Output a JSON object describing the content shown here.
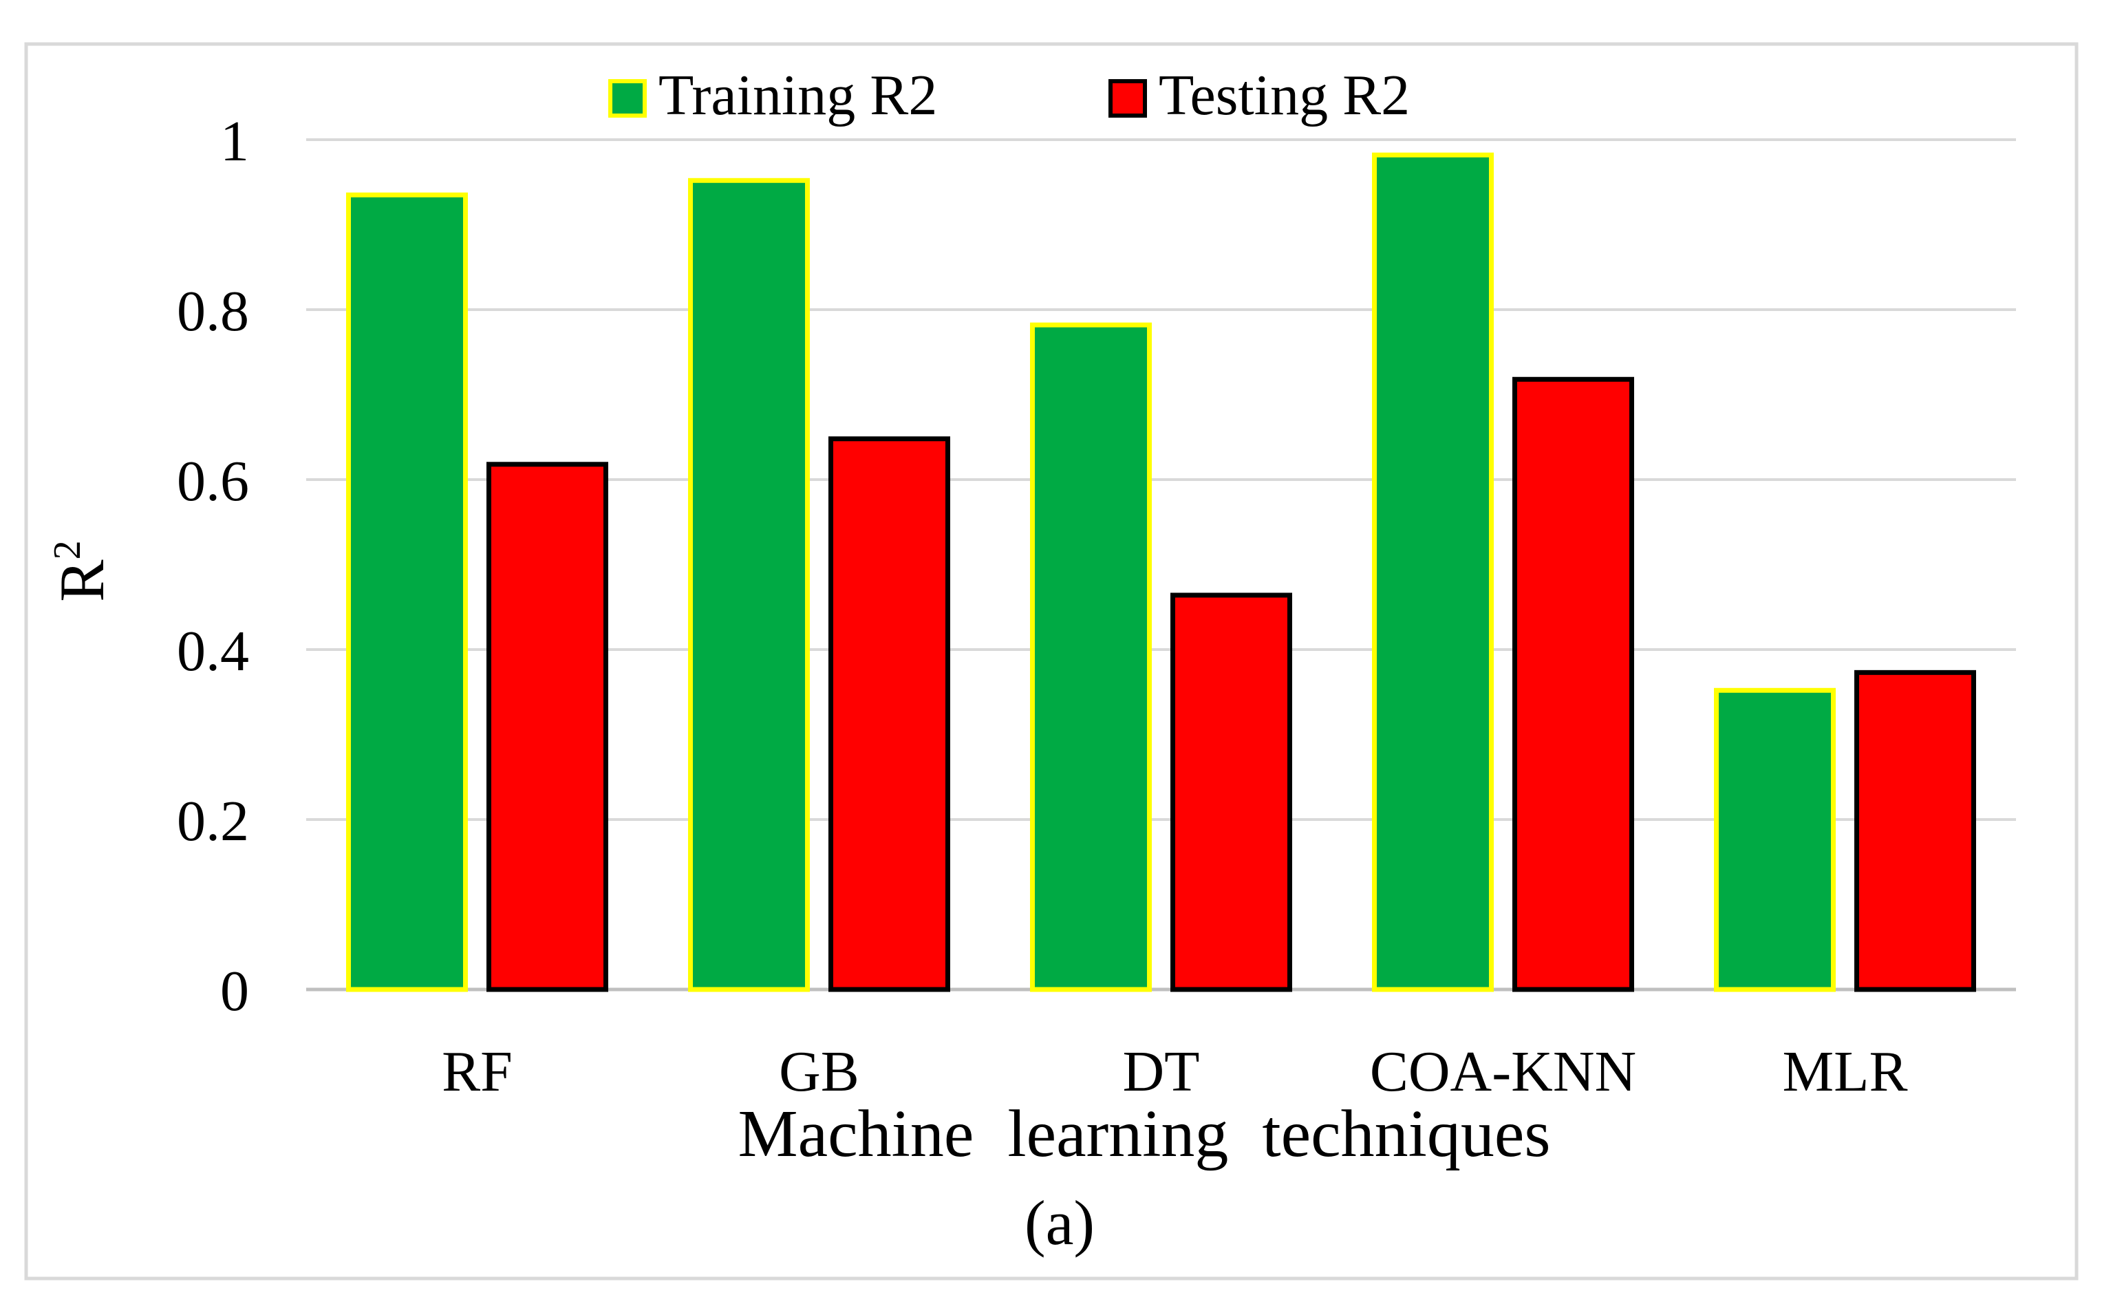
{
  "chart_data": {
    "type": "bar",
    "categories": [
      "RF",
      "GB",
      "DT",
      "COA-KNN",
      "MLR"
    ],
    "series": [
      {
        "name": "Training R2",
        "values": [
          0.935,
          0.952,
          0.782,
          0.982,
          0.352
        ],
        "fill": "#00AA44",
        "stroke": "#FFFF00"
      },
      {
        "name": "Testing R2",
        "values": [
          0.618,
          0.648,
          0.464,
          0.718,
          0.373
        ],
        "fill": "#FF0000",
        "stroke": "#000000"
      }
    ],
    "title": "",
    "xlabel": "Machine  learning  techniques",
    "ylabel": "R",
    "ylabel_superscript": "2",
    "ylim": [
      0,
      1
    ],
    "yticks": [
      "0",
      "0.2",
      "0.4",
      "0.6",
      "0.8",
      "1"
    ],
    "grid": true,
    "legend_position": "top",
    "caption": "(a)",
    "colors": {
      "gridline": "#D9D9D9",
      "frame": "#D9D9D9",
      "axis": "#BFBFBF"
    }
  }
}
